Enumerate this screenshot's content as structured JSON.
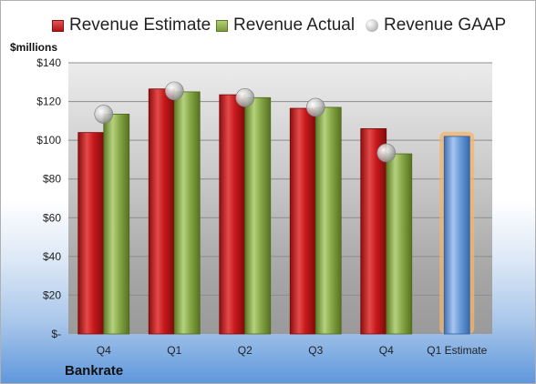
{
  "legend": {
    "estimate": "Revenue Estimate",
    "actual": "Revenue Actual",
    "gaap": "Revenue GAAP"
  },
  "unit_label": "$millions",
  "company": "Bankrate",
  "colors": {
    "estimate": "#c8191c",
    "actual": "#8aaa4a",
    "gaap": "#c0c0c0",
    "forecast": "#6f9edb",
    "forecast_glow": "#f4b46a"
  },
  "chart_data": {
    "type": "bar",
    "title": "",
    "xlabel": "",
    "ylabel": "$millions",
    "ylim": [
      0,
      140
    ],
    "yticks": [
      0,
      20,
      40,
      60,
      80,
      100,
      120,
      140
    ],
    "ytick_labels": [
      "$-",
      "$20",
      "$40",
      "$60",
      "$80",
      "$100",
      "$120",
      "$140"
    ],
    "categories": [
      "Q4",
      "Q1",
      "Q2",
      "Q3",
      "Q4",
      "Q1 Estimate"
    ],
    "series": [
      {
        "name": "Revenue Estimate",
        "values": [
          104,
          126.5,
          123.5,
          116.5,
          106,
          null
        ]
      },
      {
        "name": "Revenue Actual",
        "values": [
          113.5,
          125,
          122,
          117,
          93,
          null
        ]
      },
      {
        "name": "Revenue GAAP",
        "values": [
          113.5,
          125.5,
          122,
          117,
          93.5,
          null
        ]
      },
      {
        "name": "Q1 Estimate",
        "values": [
          null,
          null,
          null,
          null,
          null,
          102
        ]
      }
    ],
    "grid": true,
    "legend_position": "top"
  }
}
